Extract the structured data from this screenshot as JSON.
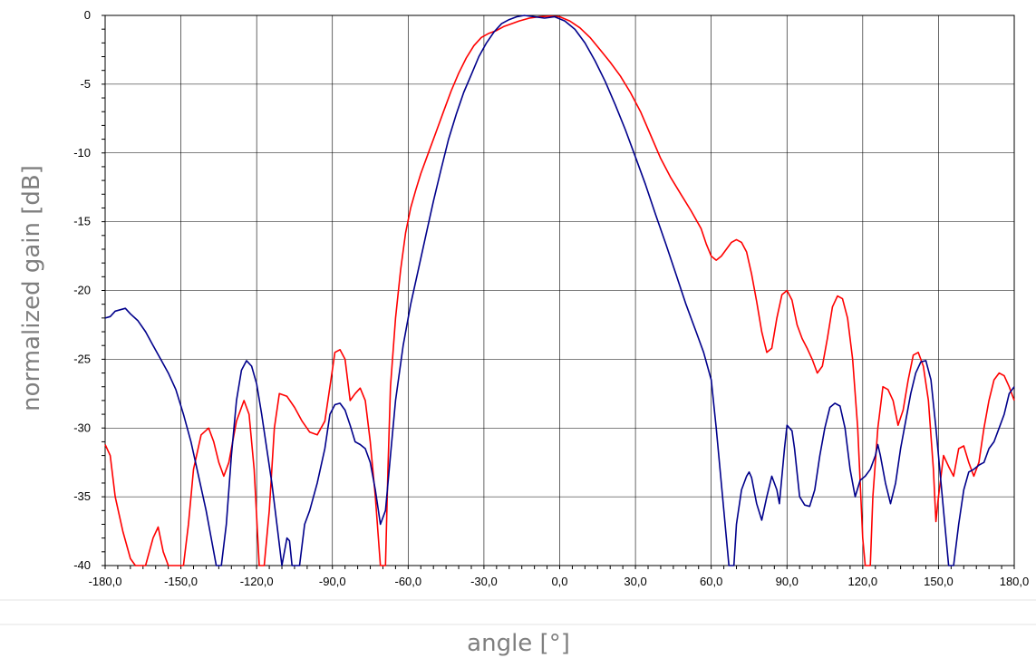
{
  "chart_data": {
    "type": "line",
    "title": "",
    "xlabel": "angle [°]",
    "ylabel": "normalized gain [dB]",
    "xlim": [
      -180,
      180
    ],
    "ylim": [
      -40,
      0
    ],
    "grid": true,
    "legend": "none",
    "x_tick_labels": [
      "-180,0",
      "-150,0",
      "-120,0",
      "-90,0",
      "-60,0",
      "-30,0",
      "0,0",
      "30,0",
      "60,0",
      "90,0",
      "120,0",
      "150,0",
      "180,0"
    ],
    "y_tick_labels": [
      "0",
      "-5",
      "-10",
      "-15",
      "-20",
      "-25",
      "-30",
      "-35",
      "-40"
    ],
    "series": [
      {
        "color": "#ff0000",
        "points": [
          [
            -180,
            -31.2
          ],
          [
            -178,
            -32
          ],
          [
            -176,
            -35
          ],
          [
            -173,
            -37.5
          ],
          [
            -170,
            -39.5
          ],
          [
            -168,
            -40
          ],
          [
            -164,
            -40
          ],
          [
            -161,
            -38
          ],
          [
            -159,
            -37.2
          ],
          [
            -157,
            -39
          ],
          [
            -155,
            -40
          ],
          [
            -152,
            -40
          ],
          [
            -149,
            -40
          ],
          [
            -147,
            -37
          ],
          [
            -145,
            -33
          ],
          [
            -142,
            -30.5
          ],
          [
            -139,
            -30
          ],
          [
            -137,
            -31
          ],
          [
            -135,
            -32.5
          ],
          [
            -133,
            -33.5
          ],
          [
            -131,
            -32.5
          ],
          [
            -128,
            -29.5
          ],
          [
            -125,
            -28
          ],
          [
            -123,
            -29
          ],
          [
            -121,
            -33
          ],
          [
            -119,
            -40
          ],
          [
            -117,
            -40
          ],
          [
            -115,
            -36
          ],
          [
            -113,
            -30
          ],
          [
            -111,
            -27.5
          ],
          [
            -108,
            -27.7
          ],
          [
            -105,
            -28.5
          ],
          [
            -102,
            -29.5
          ],
          [
            -99,
            -30.3
          ],
          [
            -96,
            -30.5
          ],
          [
            -93,
            -29.5
          ],
          [
            -91,
            -27
          ],
          [
            -89,
            -24.5
          ],
          [
            -87,
            -24.3
          ],
          [
            -85,
            -25
          ],
          [
            -83,
            -28
          ],
          [
            -81,
            -27.5
          ],
          [
            -79,
            -27.1
          ],
          [
            -77,
            -28
          ],
          [
            -75,
            -31
          ],
          [
            -73,
            -35
          ],
          [
            -71,
            -40
          ],
          [
            -69,
            -40
          ],
          [
            -68,
            -33
          ],
          [
            -67,
            -27
          ],
          [
            -65,
            -22
          ],
          [
            -63,
            -18.5
          ],
          [
            -61,
            -15.8
          ],
          [
            -59,
            -14
          ],
          [
            -57,
            -12.7
          ],
          [
            -55,
            -11.5
          ],
          [
            -52,
            -10
          ],
          [
            -49,
            -8.5
          ],
          [
            -46,
            -7
          ],
          [
            -43,
            -5.5
          ],
          [
            -40,
            -4.2
          ],
          [
            -37,
            -3.1
          ],
          [
            -34,
            -2.2
          ],
          [
            -31,
            -1.6
          ],
          [
            -28,
            -1.3
          ],
          [
            -25,
            -1.1
          ],
          [
            -22,
            -0.8
          ],
          [
            -19,
            -0.6
          ],
          [
            -16,
            -0.4
          ],
          [
            -12,
            -0.2
          ],
          [
            -8,
            -0.1
          ],
          [
            -4,
            -0.05
          ],
          [
            0,
            -0.1
          ],
          [
            4,
            -0.4
          ],
          [
            8,
            -0.9
          ],
          [
            12,
            -1.6
          ],
          [
            16,
            -2.5
          ],
          [
            20,
            -3.4
          ],
          [
            24,
            -4.4
          ],
          [
            28,
            -5.6
          ],
          [
            32,
            -7
          ],
          [
            36,
            -8.7
          ],
          [
            40,
            -10.4
          ],
          [
            44,
            -11.8
          ],
          [
            48,
            -13
          ],
          [
            52,
            -14.2
          ],
          [
            56,
            -15.5
          ],
          [
            58,
            -16.6
          ],
          [
            60,
            -17.5
          ],
          [
            62,
            -17.8
          ],
          [
            64,
            -17.5
          ],
          [
            66,
            -17
          ],
          [
            68,
            -16.5
          ],
          [
            70,
            -16.3
          ],
          [
            72,
            -16.5
          ],
          [
            74,
            -17.2
          ],
          [
            76,
            -18.8
          ],
          [
            78,
            -20.8
          ],
          [
            80,
            -23
          ],
          [
            82,
            -24.5
          ],
          [
            84,
            -24.2
          ],
          [
            86,
            -22
          ],
          [
            88,
            -20.3
          ],
          [
            90,
            -20
          ],
          [
            92,
            -20.7
          ],
          [
            94,
            -22.5
          ],
          [
            96,
            -23.5
          ],
          [
            98,
            -24.2
          ],
          [
            100,
            -25
          ],
          [
            102,
            -26
          ],
          [
            104,
            -25.5
          ],
          [
            106,
            -23.5
          ],
          [
            108,
            -21.2
          ],
          [
            110,
            -20.4
          ],
          [
            112,
            -20.6
          ],
          [
            114,
            -22
          ],
          [
            116,
            -25
          ],
          [
            118,
            -30
          ],
          [
            120,
            -38
          ],
          [
            121,
            -40
          ],
          [
            123,
            -40
          ],
          [
            124,
            -35
          ],
          [
            126,
            -30
          ],
          [
            128,
            -27
          ],
          [
            130,
            -27.2
          ],
          [
            132,
            -28
          ],
          [
            134,
            -29.8
          ],
          [
            136,
            -28.7
          ],
          [
            138,
            -26.5
          ],
          [
            140,
            -24.7
          ],
          [
            142,
            -24.5
          ],
          [
            144,
            -25.5
          ],
          [
            146,
            -28
          ],
          [
            148,
            -33
          ],
          [
            149,
            -36.8
          ],
          [
            150,
            -35
          ],
          [
            152,
            -32
          ],
          [
            154,
            -32.8
          ],
          [
            156,
            -33.5
          ],
          [
            158,
            -31.5
          ],
          [
            160,
            -31.3
          ],
          [
            162,
            -32.5
          ],
          [
            164,
            -33.5
          ],
          [
            166,
            -32.5
          ],
          [
            168,
            -30
          ],
          [
            170,
            -28
          ],
          [
            172,
            -26.5
          ],
          [
            174,
            -26
          ],
          [
            176,
            -26.2
          ],
          [
            178,
            -27
          ],
          [
            180,
            -28
          ]
        ]
      },
      {
        "color": "#00008b",
        "points": [
          [
            -180,
            -22
          ],
          [
            -178,
            -21.9
          ],
          [
            -176,
            -21.5
          ],
          [
            -172,
            -21.3
          ],
          [
            -170,
            -21.7
          ],
          [
            -167,
            -22.2
          ],
          [
            -164,
            -23
          ],
          [
            -161,
            -24
          ],
          [
            -158,
            -25
          ],
          [
            -155,
            -26
          ],
          [
            -152,
            -27.2
          ],
          [
            -149,
            -29
          ],
          [
            -146,
            -31
          ],
          [
            -143,
            -33.5
          ],
          [
            -140,
            -36
          ],
          [
            -138,
            -38
          ],
          [
            -136,
            -40
          ],
          [
            -134,
            -40
          ],
          [
            -132,
            -37
          ],
          [
            -130,
            -32
          ],
          [
            -128,
            -28
          ],
          [
            -126,
            -25.8
          ],
          [
            -124,
            -25.1
          ],
          [
            -122,
            -25.5
          ],
          [
            -120,
            -26.8
          ],
          [
            -118,
            -29
          ],
          [
            -116,
            -31.5
          ],
          [
            -114,
            -34
          ],
          [
            -112,
            -37
          ],
          [
            -110,
            -40
          ],
          [
            -108,
            -38
          ],
          [
            -107,
            -38.2
          ],
          [
            -106,
            -40
          ],
          [
            -103,
            -40
          ],
          [
            -101,
            -37
          ],
          [
            -99,
            -36
          ],
          [
            -96,
            -34
          ],
          [
            -93,
            -31.5
          ],
          [
            -91,
            -29
          ],
          [
            -89,
            -28.3
          ],
          [
            -87,
            -28.2
          ],
          [
            -85,
            -28.7
          ],
          [
            -83,
            -29.8
          ],
          [
            -81,
            -31
          ],
          [
            -79,
            -31.2
          ],
          [
            -77,
            -31.5
          ],
          [
            -75,
            -32.5
          ],
          [
            -73,
            -34.5
          ],
          [
            -71,
            -37
          ],
          [
            -69,
            -36
          ],
          [
            -67,
            -32
          ],
          [
            -65,
            -28
          ],
          [
            -62,
            -24
          ],
          [
            -59,
            -21
          ],
          [
            -56,
            -18.5
          ],
          [
            -53,
            -16
          ],
          [
            -50,
            -13.5
          ],
          [
            -47,
            -11.2
          ],
          [
            -44,
            -9
          ],
          [
            -41,
            -7.2
          ],
          [
            -38,
            -5.6
          ],
          [
            -35,
            -4.3
          ],
          [
            -32,
            -3
          ],
          [
            -29,
            -2
          ],
          [
            -26,
            -1.2
          ],
          [
            -23,
            -0.6
          ],
          [
            -20,
            -0.3
          ],
          [
            -17,
            -0.1
          ],
          [
            -14,
            0
          ],
          [
            -10,
            -0.1
          ],
          [
            -6,
            -0.2
          ],
          [
            -2,
            -0.1
          ],
          [
            2,
            -0.4
          ],
          [
            6,
            -1
          ],
          [
            10,
            -2
          ],
          [
            14,
            -3.3
          ],
          [
            18,
            -4.8
          ],
          [
            22,
            -6.5
          ],
          [
            26,
            -8.3
          ],
          [
            30,
            -10.3
          ],
          [
            34,
            -12.3
          ],
          [
            38,
            -14.5
          ],
          [
            42,
            -16.6
          ],
          [
            46,
            -18.8
          ],
          [
            50,
            -21
          ],
          [
            54,
            -23
          ],
          [
            57,
            -24.5
          ],
          [
            60,
            -26.5
          ],
          [
            62,
            -30
          ],
          [
            64,
            -34
          ],
          [
            66,
            -38
          ],
          [
            67,
            -40
          ],
          [
            69,
            -40
          ],
          [
            70,
            -37
          ],
          [
            72,
            -34.5
          ],
          [
            74,
            -33.5
          ],
          [
            75,
            -33.2
          ],
          [
            76,
            -33.6
          ],
          [
            78,
            -35.5
          ],
          [
            80,
            -36.7
          ],
          [
            82,
            -35
          ],
          [
            84,
            -33.5
          ],
          [
            86,
            -34.5
          ],
          [
            87,
            -35.5
          ],
          [
            89,
            -31.5
          ],
          [
            90,
            -29.8
          ],
          [
            92,
            -30.2
          ],
          [
            93,
            -31.5
          ],
          [
            95,
            -35
          ],
          [
            97,
            -35.6
          ],
          [
            99,
            -35.7
          ],
          [
            101,
            -34.5
          ],
          [
            103,
            -32
          ],
          [
            105,
            -30
          ],
          [
            107,
            -28.5
          ],
          [
            109,
            -28.2
          ],
          [
            111,
            -28.4
          ],
          [
            113,
            -30
          ],
          [
            115,
            -33
          ],
          [
            117,
            -35
          ],
          [
            119,
            -33.8
          ],
          [
            121,
            -33.5
          ],
          [
            123,
            -33
          ],
          [
            125,
            -32
          ],
          [
            126,
            -31.2
          ],
          [
            127,
            -32
          ],
          [
            129,
            -34
          ],
          [
            131,
            -35.5
          ],
          [
            133,
            -34
          ],
          [
            135,
            -31.5
          ],
          [
            137,
            -29.5
          ],
          [
            139,
            -27.5
          ],
          [
            141,
            -26
          ],
          [
            143,
            -25.2
          ],
          [
            145,
            -25.1
          ],
          [
            147,
            -26.5
          ],
          [
            149,
            -30
          ],
          [
            151,
            -34
          ],
          [
            153,
            -38
          ],
          [
            154,
            -40
          ],
          [
            156,
            -40
          ],
          [
            158,
            -37
          ],
          [
            160,
            -34.5
          ],
          [
            162,
            -33.2
          ],
          [
            164,
            -33
          ],
          [
            166,
            -32.7
          ],
          [
            168,
            -32.5
          ],
          [
            170,
            -31.5
          ],
          [
            172,
            -31
          ],
          [
            174,
            -30
          ],
          [
            176,
            -29
          ],
          [
            178,
            -27.5
          ],
          [
            180,
            -27
          ]
        ]
      }
    ]
  }
}
